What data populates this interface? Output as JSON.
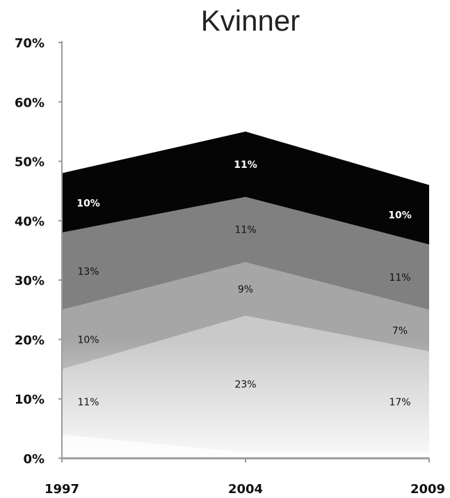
{
  "chart_data": {
    "type": "area",
    "stacked": true,
    "title": "Kvinner",
    "x": [
      "1997",
      "2004",
      "2009"
    ],
    "ylim": [
      0,
      70
    ],
    "yticks": [
      "0%",
      "10%",
      "20%",
      "30%",
      "40%",
      "50%",
      "60%",
      "70%"
    ],
    "grid": false,
    "legend": "none",
    "series": [
      {
        "values": [
          4,
          1,
          1
        ],
        "labels": [
          "",
          "",
          ""
        ],
        "color": "#f2f2f2",
        "label_color": "#111111"
      },
      {
        "values": [
          11,
          23,
          17
        ],
        "labels": [
          "11%",
          "23%",
          "17%"
        ],
        "color": "#c9c9c9",
        "label_color": "#111111"
      },
      {
        "values": [
          10,
          9,
          7
        ],
        "labels": [
          "10%",
          "9%",
          "7%"
        ],
        "color": "#a6a6a6",
        "label_color": "#111111"
      },
      {
        "values": [
          13,
          11,
          11
        ],
        "labels": [
          "13%",
          "11%",
          "11%"
        ],
        "color": "#808080",
        "label_color": "#111111"
      },
      {
        "values": [
          10,
          11,
          10
        ],
        "labels": [
          "10%",
          "11%",
          "10%"
        ],
        "color": "#050505",
        "label_color": "#ffffff"
      }
    ]
  }
}
